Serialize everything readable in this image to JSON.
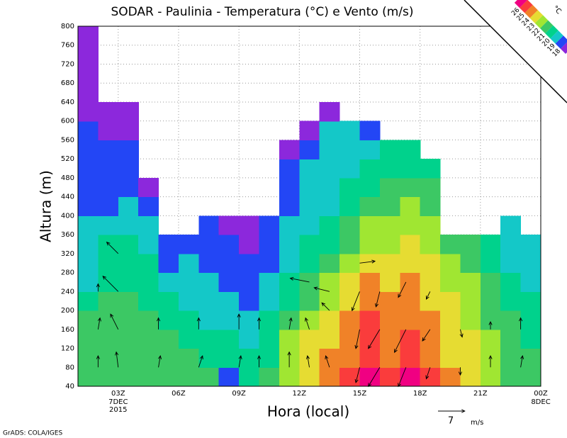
{
  "chart_data": {
    "type": "shaded-contour",
    "title": "SODAR - Paulinia - Temperatura (°C) e Vento (m/s)",
    "xlabel": "Hora (local)",
    "ylabel": "Altura (m)",
    "footer": "GrADS: COLA/IGES",
    "xlim": [
      1,
      24
    ],
    "ylim": [
      40,
      800
    ],
    "xticks": [
      {
        "value": 3,
        "label": "03Z",
        "sublabels": [
          "7DEC",
          "2015"
        ]
      },
      {
        "value": 6,
        "label": "06Z"
      },
      {
        "value": 9,
        "label": "09Z"
      },
      {
        "value": 12,
        "label": "12Z"
      },
      {
        "value": 15,
        "label": "15Z"
      },
      {
        "value": 18,
        "label": "18Z"
      },
      {
        "value": 21,
        "label": "21Z"
      },
      {
        "value": 24,
        "label": "00Z",
        "sublabels": [
          "8DEC"
        ]
      }
    ],
    "yticks": [
      40,
      80,
      120,
      160,
      200,
      240,
      280,
      320,
      360,
      400,
      440,
      480,
      520,
      560,
      600,
      640,
      680,
      720,
      760,
      800
    ],
    "grid": true,
    "colorbar": {
      "unit": "°C",
      "levels": [
        18,
        19,
        20,
        21,
        22,
        23,
        24,
        25,
        26
      ],
      "colors": [
        "#8c28dc",
        "#2346f5",
        "#14c8c8",
        "#00d28c",
        "#3cc864",
        "#a0e632",
        "#e6dc32",
        "#f08228",
        "#fa3c3c",
        "#f00082"
      ]
    },
    "x": [
      1.5,
      2.5,
      3.5,
      4.5,
      5.5,
      6.5,
      7.5,
      8.5,
      9.5,
      10.5,
      11.5,
      12.5,
      13.5,
      14.5,
      15.5,
      16.5,
      17.5,
      18.5,
      19.5,
      20.5,
      21.5,
      22.5,
      23.5
    ],
    "y": [
      60,
      100,
      140,
      180,
      220,
      260,
      300,
      340,
      380,
      420,
      460,
      500,
      540,
      580,
      620,
      660,
      700,
      740,
      780
    ],
    "z": [
      [
        21.6,
        21.5,
        21.3,
        21.1,
        20.6,
        19.8,
        19.5,
        19.3,
        19.1,
        18.8,
        18.6,
        18.4,
        18.2,
        18.1,
        17.8,
        17.6,
        17.4,
        17.3,
        17.2
      ],
      [
        21.7,
        21.6,
        21.4,
        21.2,
        21.0,
        20.5,
        20.3,
        20.1,
        19.8,
        18.9,
        18.6,
        18.3,
        18.1,
        17.9,
        17.7,
        null,
        null,
        null,
        null
      ],
      [
        21.8,
        21.6,
        21.3,
        21.1,
        21.0,
        20.7,
        20.4,
        20.2,
        19.8,
        19.2,
        18.8,
        18.5,
        18.3,
        17.9,
        17.8,
        null,
        null,
        null,
        null
      ],
      [
        21.6,
        21.4,
        21.2,
        21.0,
        20.8,
        20.4,
        20.0,
        19.6,
        19.3,
        18.8,
        17.9,
        null,
        null,
        null,
        null,
        null,
        null,
        null,
        null
      ],
      [
        21.4,
        21.2,
        21.0,
        20.6,
        20.1,
        19.5,
        18.9,
        18.6,
        null,
        null,
        null,
        null,
        null,
        null,
        null,
        null,
        null,
        null,
        null
      ],
      [
        21.2,
        21.0,
        20.6,
        20.2,
        19.8,
        19.4,
        19.1,
        18.8,
        null,
        null,
        null,
        null,
        null,
        null,
        null,
        null,
        null,
        null,
        null
      ],
      [
        21.0,
        20.8,
        20.4,
        19.9,
        19.5,
        19.0,
        18.7,
        18.5,
        18.3,
        null,
        null,
        null,
        null,
        null,
        null,
        null,
        null,
        null,
        null
      ],
      [
        18.8,
        20.5,
        20.1,
        19.7,
        19.2,
        18.8,
        18.5,
        18.3,
        17.9,
        null,
        null,
        null,
        null,
        null,
        null,
        null,
        null,
        null,
        null
      ],
      [
        20.6,
        20.3,
        19.8,
        19.3,
        18.8,
        18.5,
        18.2,
        17.9,
        17.7,
        null,
        null,
        null,
        null,
        null,
        null,
        null,
        null,
        null,
        null
      ],
      [
        21.0,
        20.8,
        20.5,
        20.0,
        19.5,
        19.0,
        18.6,
        18.3,
        18.0,
        null,
        null,
        null,
        null,
        null,
        null,
        null,
        null,
        null,
        null
      ],
      [
        22.8,
        22.5,
        22.0,
        21.2,
        20.6,
        20.1,
        19.7,
        19.4,
        19.1,
        18.8,
        18.5,
        18.2,
        17.9,
        null,
        null,
        null,
        null,
        null,
        null
      ],
      [
        23.8,
        23.5,
        23.1,
        22.6,
        21.8,
        21.2,
        20.6,
        20.1,
        19.7,
        19.4,
        19.2,
        19.0,
        18.8,
        17.9,
        null,
        null,
        null,
        null,
        null
      ],
      [
        24.5,
        24.3,
        23.9,
        23.4,
        22.6,
        22.0,
        21.3,
        20.8,
        20.3,
        19.9,
        19.6,
        19.4,
        19.2,
        19.0,
        17.9,
        null,
        null,
        null,
        null
      ],
      [
        25.2,
        24.9,
        24.5,
        24.1,
        23.5,
        23.0,
        22.3,
        21.6,
        21.0,
        20.5,
        20.1,
        19.8,
        19.5,
        19.2,
        null,
        null,
        null,
        null,
        null
      ],
      [
        26.2,
        25.8,
        25.4,
        25.0,
        24.6,
        24.2,
        23.5,
        22.8,
        22.1,
        21.5,
        20.9,
        20.4,
        19.9,
        18.8,
        null,
        null,
        null,
        null,
        null
      ],
      [
        25.4,
        24.9,
        24.5,
        24.3,
        24.1,
        23.8,
        23.4,
        22.9,
        22.2,
        21.6,
        21.0,
        20.5,
        20.1,
        null,
        null,
        null,
        null,
        null,
        null
      ],
      [
        26.1,
        25.6,
        25.0,
        24.6,
        24.3,
        24.0,
        23.6,
        23.1,
        22.6,
        22.0,
        21.4,
        20.9,
        20.4,
        null,
        null,
        null,
        null,
        null,
        null
      ],
      [
        25.2,
        24.8,
        24.4,
        24.1,
        23.8,
        23.4,
        23.0,
        22.6,
        22.1,
        21.6,
        21.1,
        20.6,
        null,
        null,
        null,
        null,
        null,
        null,
        null
      ],
      [
        24.2,
        23.8,
        23.6,
        23.3,
        23.0,
        22.7,
        22.3,
        21.8,
        null,
        null,
        null,
        null,
        null,
        null,
        null,
        null,
        null,
        null,
        null
      ],
      [
        23.4,
        23.2,
        23.0,
        22.7,
        22.3,
        22.0,
        21.6,
        21.0,
        null,
        null,
        null,
        null,
        null,
        null,
        null,
        null,
        null,
        null,
        null
      ],
      [
        22.4,
        22.3,
        22.1,
        21.8,
        21.4,
        21.0,
        20.6,
        20.2,
        null,
        null,
        null,
        null,
        null,
        null,
        null,
        null,
        null,
        null,
        null
      ],
      [
        21.6,
        21.4,
        21.2,
        21.0,
        20.7,
        20.3,
        19.9,
        19.6,
        19.3,
        null,
        null,
        null,
        null,
        null,
        null,
        null,
        null,
        null,
        null
      ],
      [
        21.3,
        21.1,
        20.9,
        20.6,
        20.3,
        19.9,
        19.6,
        19.3,
        null,
        null,
        null,
        null,
        null,
        null,
        null,
        null,
        null,
        null,
        null
      ]
    ],
    "wind": {
      "x": [
        2,
        2,
        2,
        3,
        3,
        3,
        3,
        5,
        5,
        7,
        7,
        9,
        9,
        10,
        10,
        11.5,
        11.5,
        12.5,
        12.5,
        12.5,
        13.5,
        13.5,
        13.5,
        15,
        15,
        15,
        15,
        16,
        16,
        16,
        17.3,
        17.3,
        17.3,
        18.5,
        18.5,
        18.5,
        20,
        20,
        21.5,
        21.5,
        23,
        23
      ],
      "y": [
        80,
        160,
        240,
        80,
        160,
        240,
        320,
        80,
        160,
        80,
        160,
        80,
        160,
        80,
        160,
        80,
        160,
        80,
        160,
        260,
        80,
        200,
        240,
        80,
        160,
        240,
        300,
        80,
        160,
        240,
        80,
        160,
        260,
        80,
        160,
        240,
        80,
        160,
        80,
        160,
        80,
        160
      ],
      "u": [
        0,
        0.5,
        0,
        -0.5,
        -2,
        -4,
        -3,
        0.5,
        0,
        1,
        0,
        0.5,
        0,
        0,
        0,
        0,
        0.5,
        -0.5,
        -1,
        -5,
        -1,
        -2,
        -4,
        -1,
        -1,
        -2,
        4,
        -3,
        -3,
        -1,
        -2,
        -3,
        -2,
        -1,
        -2,
        -1,
        0,
        0.5,
        0,
        0,
        0.5,
        0
      ],
      "v": [
        3,
        3,
        2,
        4,
        4,
        4,
        3,
        3,
        3,
        3,
        3,
        3,
        4,
        3,
        3,
        4,
        3,
        3,
        3,
        1,
        3,
        2,
        1,
        -4,
        -5,
        -5,
        0.5,
        -5,
        -5,
        -4,
        -5,
        -6,
        -4,
        -3,
        -3,
        -2,
        -2,
        -2,
        3,
        2,
        3,
        3
      ]
    },
    "vector_ref": {
      "value": 7,
      "unit": "m/s"
    }
  }
}
